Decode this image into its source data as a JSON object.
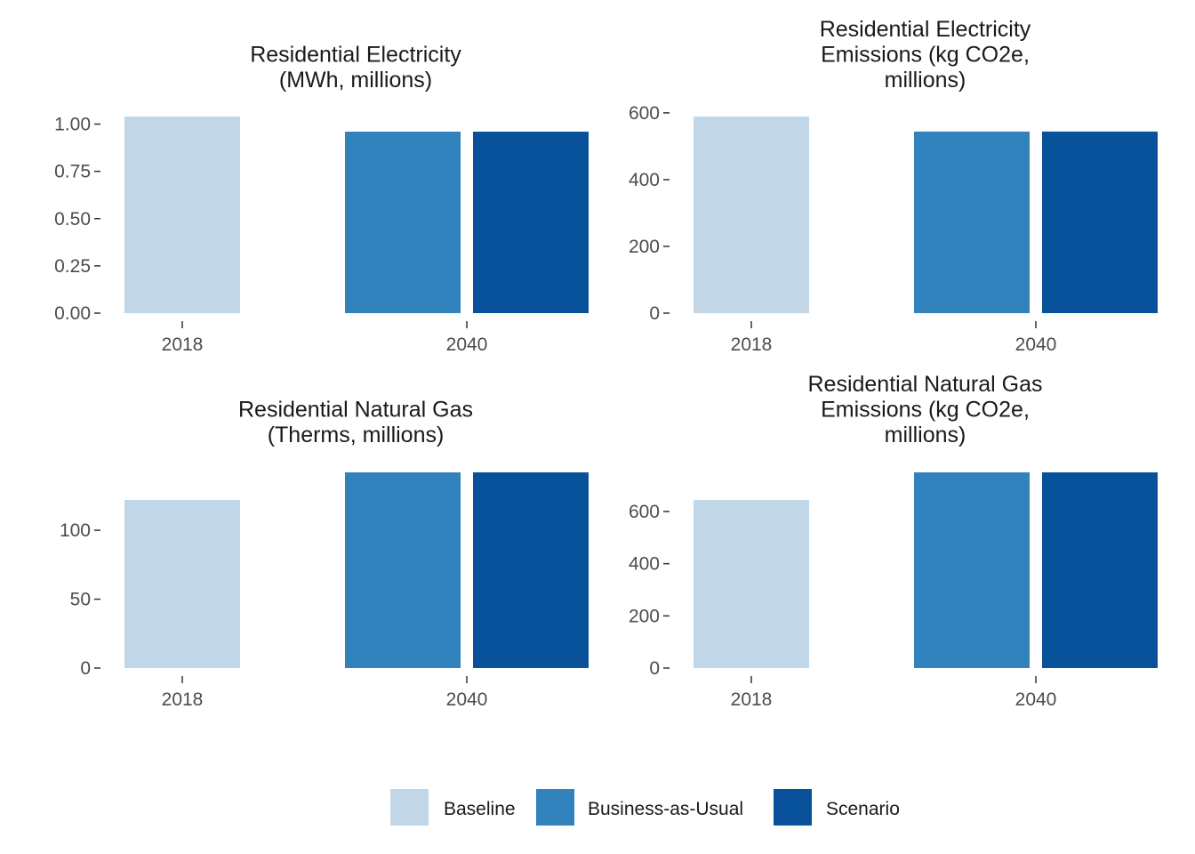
{
  "chart_data": [
    {
      "type": "bar",
      "title": "Residential Electricity\n(MWh, millions)",
      "categories": [
        "2018",
        "2040"
      ],
      "series": [
        {
          "name": "Baseline",
          "color": "#c1d7e7",
          "values": [
            1.04,
            null
          ]
        },
        {
          "name": "Business-as-Usual",
          "color": "#3282bd",
          "values": [
            null,
            0.96
          ]
        },
        {
          "name": "Scenario",
          "color": "#08529c",
          "values": [
            null,
            0.96
          ]
        }
      ],
      "ylim": [
        0,
        1.04
      ],
      "yticks": [
        {
          "value": 0,
          "label": "0.00"
        },
        {
          "value": 0.25,
          "label": "0.25"
        },
        {
          "value": 0.5,
          "label": "0.50"
        },
        {
          "value": 0.75,
          "label": "0.75"
        },
        {
          "value": 1,
          "label": "1.00"
        }
      ],
      "legend": "bottom",
      "grid": false
    },
    {
      "type": "bar",
      "title": "Residential Electricity\nEmissions (kg CO2e,\nmillions)",
      "categories": [
        "2018",
        "2040"
      ],
      "series": [
        {
          "name": "Baseline",
          "color": "#c1d7e7",
          "values": [
            589,
            null
          ]
        },
        {
          "name": "Business-as-Usual",
          "color": "#3282bd",
          "values": [
            null,
            544
          ]
        },
        {
          "name": "Scenario",
          "color": "#08529c",
          "values": [
            null,
            544
          ]
        }
      ],
      "ylim": [
        0,
        589
      ],
      "yticks": [
        0,
        200,
        400,
        600
      ],
      "grid": false
    },
    {
      "type": "bar",
      "title": "Residential Natural Gas\n(Therms, millions)",
      "categories": [
        "2018",
        "2040"
      ],
      "series": [
        {
          "name": "Baseline",
          "color": "#c1d7e7",
          "values": [
            122,
            null
          ]
        },
        {
          "name": "Business-as-Usual",
          "color": "#3282bd",
          "values": [
            null,
            142
          ]
        },
        {
          "name": "Scenario",
          "color": "#08529c",
          "values": [
            null,
            142
          ]
        }
      ],
      "ylim": [
        0,
        142
      ],
      "yticks": [
        0,
        50,
        100
      ],
      "grid": false
    },
    {
      "type": "bar",
      "title": "Residential Natural Gas\nEmissions (kg CO2e,\nmillions)",
      "categories": [
        "2018",
        "2040"
      ],
      "series": [
        {
          "name": "Baseline",
          "color": "#c1d7e7",
          "values": [
            644,
            null
          ]
        },
        {
          "name": "Business-as-Usual",
          "color": "#3282bd",
          "values": [
            null,
            750
          ]
        },
        {
          "name": "Scenario",
          "color": "#08529c",
          "values": [
            null,
            750
          ]
        }
      ],
      "ylim": [
        0,
        750
      ],
      "yticks": [
        0,
        200,
        400,
        600
      ],
      "grid": false
    }
  ]
}
